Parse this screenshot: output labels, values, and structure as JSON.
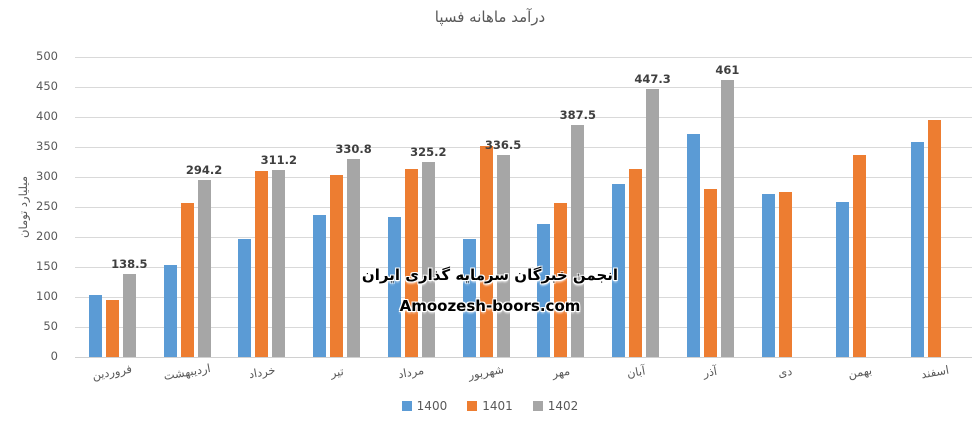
{
  "title": "درآمد ماهانه فسپا",
  "watermark": {
    "line1": "انجمن خبرگان سرمایه گذاری ایران",
    "line2": "Amoozesh-boors.com"
  },
  "chart_data": {
    "type": "bar",
    "title": "درآمد ماهانه فسپا",
    "ylabel": "میلیارد تومان",
    "xlabel": "",
    "ylim": [
      0,
      500
    ],
    "ytick_step": 50,
    "ytick_labels": [
      "0",
      "50",
      "100",
      "150",
      "200",
      "250",
      "300",
      "350",
      "400",
      "450",
      "500"
    ],
    "grid": true,
    "legend_position": "bottom",
    "categories": [
      "فروردین",
      "اردیبهشت",
      "خرداد",
      "تیر",
      "مرداد",
      "شهریور",
      "مهر",
      "آبان",
      "آذر",
      "دی",
      "بهمن",
      "اسفند"
    ],
    "series": [
      {
        "name": "1400",
        "color": "#5B9BD5",
        "data_labels": false,
        "values": [
          103,
          153,
          197,
          236,
          234,
          197,
          221,
          289,
          371,
          272,
          259,
          359
        ]
      },
      {
        "name": "1401",
        "color": "#ED7D31",
        "data_labels": false,
        "values": [
          95,
          256,
          310,
          304,
          314,
          351,
          256,
          314,
          280,
          275,
          337,
          395
        ]
      },
      {
        "name": "1402",
        "color": "#A6A6A6",
        "data_labels": true,
        "values": [
          138.5,
          294.2,
          311.2,
          330.8,
          325.2,
          336.5,
          387.5,
          447.3,
          461,
          null,
          null,
          null
        ]
      }
    ]
  }
}
